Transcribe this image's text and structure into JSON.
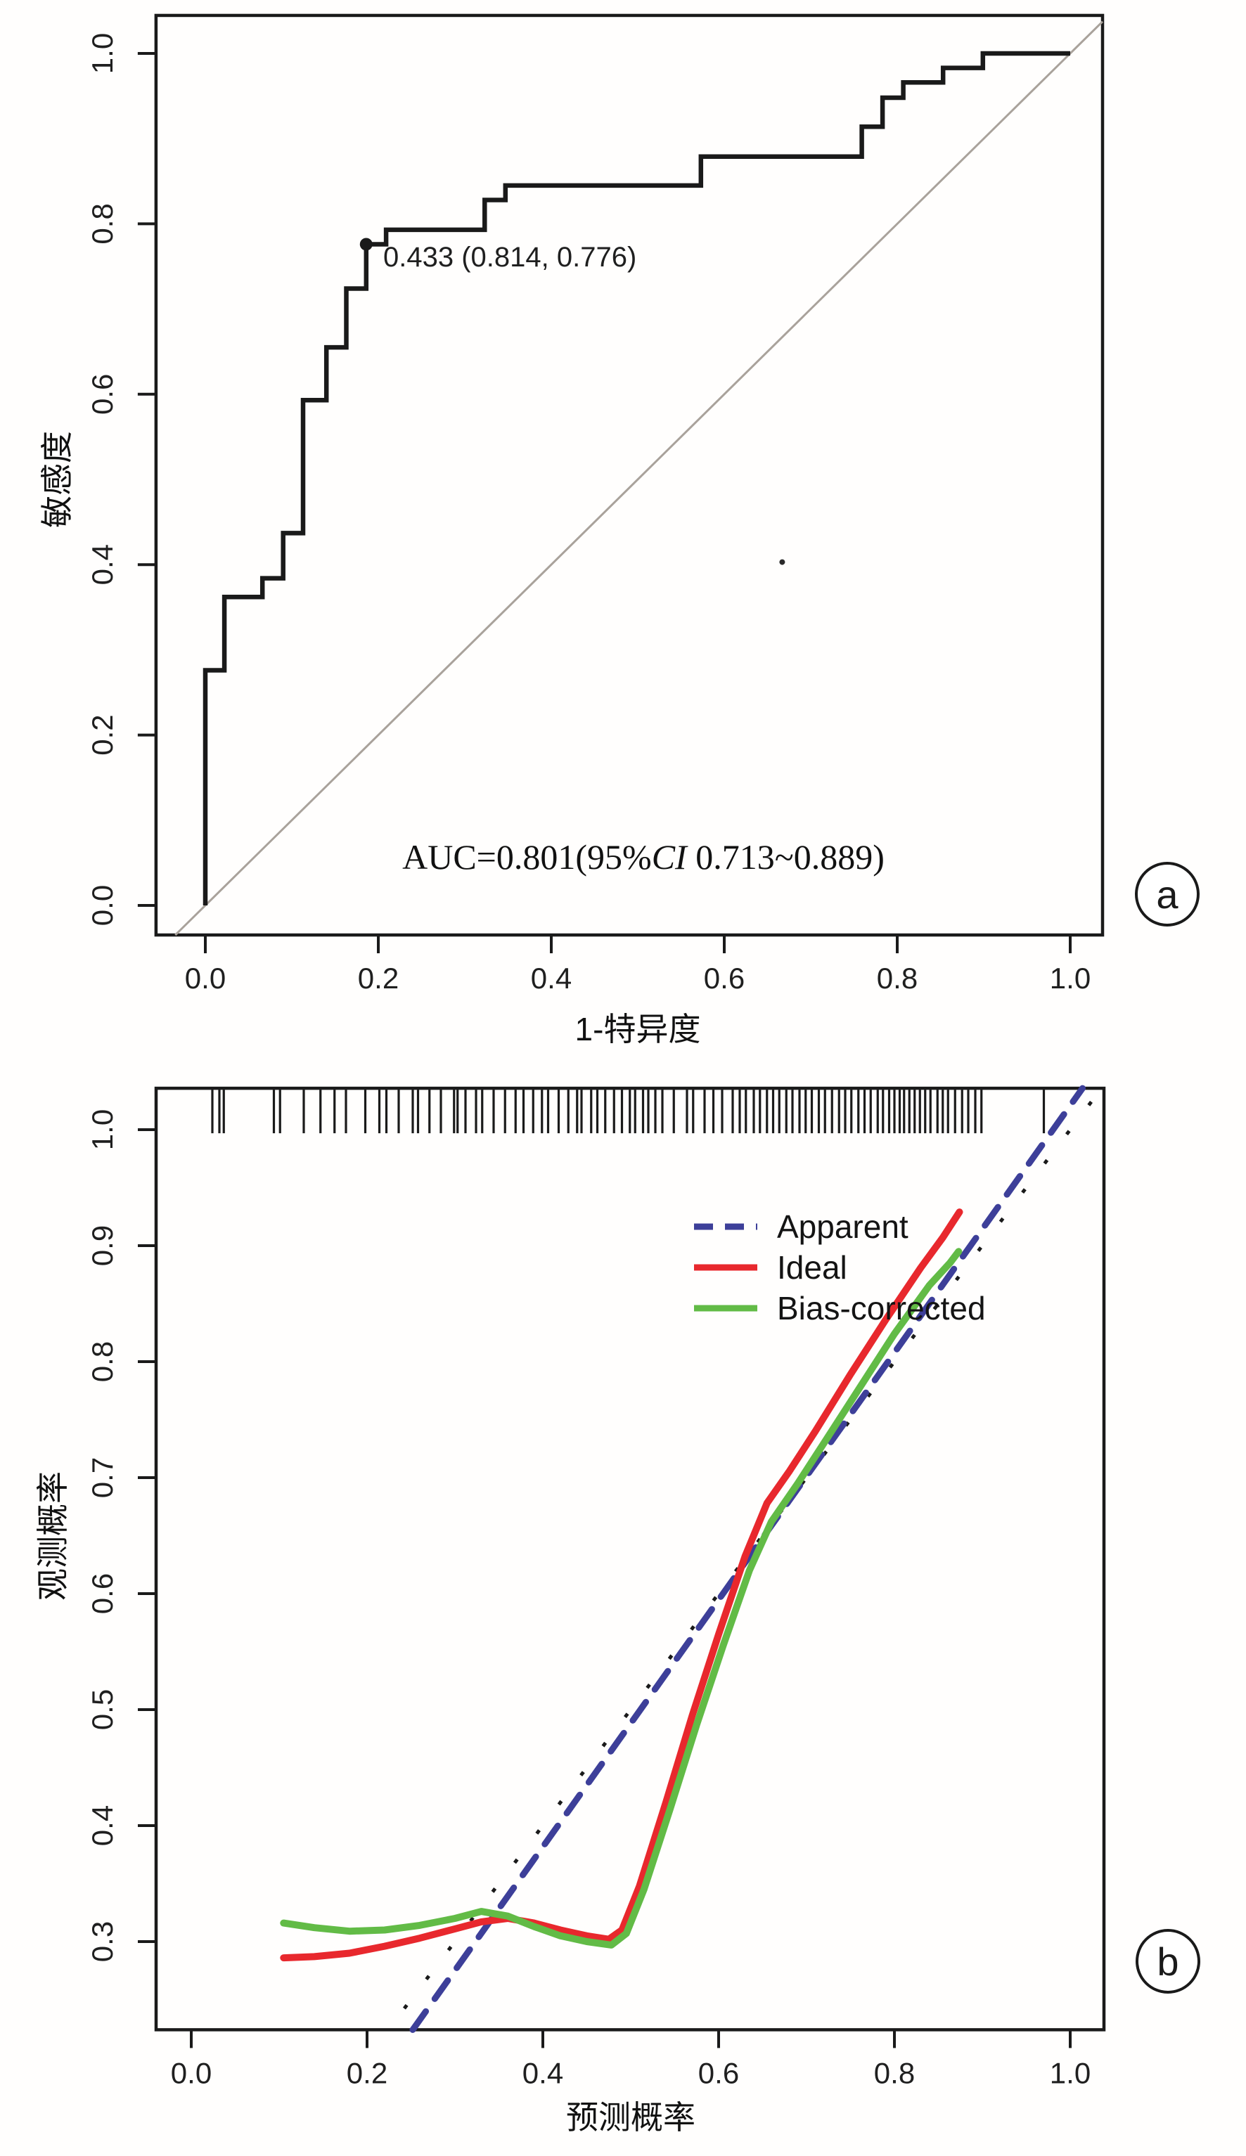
{
  "chart_data": [
    {
      "type": "line",
      "panel_label": "a",
      "description": "ROC curve",
      "xlabel": "1-特异度",
      "ylabel": "敏感度",
      "xlim": [
        -0.057,
        1.0374
      ],
      "ylim": [
        -0.0347,
        1.0446
      ],
      "grid": false,
      "x_ticks": {
        "values": [
          0,
          0.2,
          0.4,
          0.6,
          0.8,
          1.0
        ],
        "labels": [
          "0.0",
          "0.2",
          "0.4",
          "0.6",
          "0.8",
          "1.0"
        ]
      },
      "y_ticks": {
        "values": [
          0,
          0.2,
          0.4,
          0.6,
          0.8,
          1.0
        ],
        "labels": [
          "0.0",
          "0.2",
          "0.4",
          "0.6",
          "0.8",
          "1.0"
        ]
      },
      "reference_line": {
        "type": "y=x",
        "color": "#a9a29b"
      },
      "roc_curve": {
        "color": "#1a1a1a",
        "points": [
          [
            0,
            0
          ],
          [
            0,
            0.276
          ],
          [
            0.022,
            0.276
          ],
          [
            0.022,
            0.362
          ],
          [
            0.066,
            0.362
          ],
          [
            0.066,
            0.384
          ],
          [
            0.09,
            0.384
          ],
          [
            0.09,
            0.437
          ],
          [
            0.113,
            0.437
          ],
          [
            0.113,
            0.593
          ],
          [
            0.14,
            0.593
          ],
          [
            0.14,
            0.655
          ],
          [
            0.163,
            0.655
          ],
          [
            0.163,
            0.724
          ],
          [
            0.186,
            0.724
          ],
          [
            0.186,
            0.776
          ],
          [
            0.209,
            0.776
          ],
          [
            0.209,
            0.793
          ],
          [
            0.323,
            0.793
          ],
          [
            0.323,
            0.828
          ],
          [
            0.347,
            0.828
          ],
          [
            0.347,
            0.845
          ],
          [
            0.573,
            0.845
          ],
          [
            0.573,
            0.879
          ],
          [
            0.759,
            0.879
          ],
          [
            0.759,
            0.914
          ],
          [
            0.783,
            0.914
          ],
          [
            0.783,
            0.948
          ],
          [
            0.807,
            0.948
          ],
          [
            0.807,
            0.966
          ],
          [
            0.853,
            0.966
          ],
          [
            0.853,
            0.983
          ],
          [
            0.899,
            0.983
          ],
          [
            0.899,
            1.0
          ],
          [
            1.0,
            1.0
          ]
        ]
      },
      "marked_point": {
        "x": 0.186,
        "y": 0.776,
        "label": "0.433 (0.814, 0.776)"
      },
      "auc_annotation": {
        "prefix": "AUC=0.801(95%",
        "italic": "CI",
        "suffix": " 0.713~0.889)"
      },
      "stray_mark": {
        "x": 0.667,
        "y": 0.403
      }
    },
    {
      "type": "line",
      "panel_label": "b",
      "description": "Calibration curve",
      "xlabel": "预测概率",
      "ylabel": "观测概率",
      "xlim": [
        -0.04,
        1.0384
      ],
      "ylim": [
        0.224,
        1.0357
      ],
      "grid": false,
      "x_ticks": {
        "values": [
          0,
          0.2,
          0.4,
          0.6,
          0.8,
          1.0
        ],
        "labels": [
          "0.0",
          "0.2",
          "0.4",
          "0.6",
          "0.8",
          "1.0"
        ]
      },
      "y_ticks": {
        "values": [
          0.3,
          0.4,
          0.5,
          0.6,
          0.7,
          0.8,
          0.9,
          1.0
        ],
        "labels": [
          "0.3",
          "0.4",
          "0.5",
          "0.6",
          "0.7",
          "0.8",
          "0.9",
          "1.0"
        ]
      },
      "legend": {
        "position": "upper-middle-right",
        "entries": [
          {
            "label": "Apparent",
            "color": "#3d3f99",
            "style": "dashed"
          },
          {
            "label": "Ideal",
            "color": "#e8282d",
            "style": "solid"
          },
          {
            "label": "Bias-corrected",
            "color": "#62bb46",
            "style": "solid"
          }
        ]
      },
      "apparent_line": {
        "color": "#3d3f99",
        "style": "dashed",
        "from": [
          0.252,
          0.224
        ],
        "to": [
          1.014,
          1.0357
        ]
      },
      "ideal_dotted_line": {
        "color": "#1a1a1a",
        "style": "dotted",
        "from": [
          0.224,
          0.224
        ],
        "to": [
          1.0357,
          1.0357
        ]
      },
      "series": [
        {
          "name": "Ideal",
          "color": "#e8282d",
          "points": [
            [
              0.105,
              0.286
            ],
            [
              0.14,
              0.287
            ],
            [
              0.18,
              0.29
            ],
            [
              0.22,
              0.296
            ],
            [
              0.26,
              0.303
            ],
            [
              0.3,
              0.311
            ],
            [
              0.33,
              0.317
            ],
            [
              0.36,
              0.32
            ],
            [
              0.39,
              0.316
            ],
            [
              0.42,
              0.31
            ],
            [
              0.45,
              0.305
            ],
            [
              0.475,
              0.302
            ],
            [
              0.49,
              0.31
            ],
            [
              0.51,
              0.348
            ],
            [
              0.54,
              0.42
            ],
            [
              0.57,
              0.495
            ],
            [
              0.6,
              0.565
            ],
            [
              0.63,
              0.632
            ],
            [
              0.655,
              0.678
            ],
            [
              0.68,
              0.705
            ],
            [
              0.71,
              0.74
            ],
            [
              0.75,
              0.789
            ],
            [
              0.79,
              0.836
            ],
            [
              0.83,
              0.881
            ],
            [
              0.855,
              0.907
            ],
            [
              0.874,
              0.929
            ]
          ]
        },
        {
          "name": "Bias-corrected",
          "color": "#62bb46",
          "points": [
            [
              0.105,
              0.316
            ],
            [
              0.14,
              0.312
            ],
            [
              0.18,
              0.309
            ],
            [
              0.22,
              0.31
            ],
            [
              0.26,
              0.314
            ],
            [
              0.3,
              0.32
            ],
            [
              0.33,
              0.326
            ],
            [
              0.36,
              0.322
            ],
            [
              0.39,
              0.313
            ],
            [
              0.42,
              0.305
            ],
            [
              0.45,
              0.3
            ],
            [
              0.478,
              0.297
            ],
            [
              0.495,
              0.307
            ],
            [
              0.515,
              0.345
            ],
            [
              0.545,
              0.415
            ],
            [
              0.575,
              0.487
            ],
            [
              0.605,
              0.555
            ],
            [
              0.635,
              0.62
            ],
            [
              0.66,
              0.662
            ],
            [
              0.69,
              0.695
            ],
            [
              0.72,
              0.73
            ],
            [
              0.76,
              0.777
            ],
            [
              0.8,
              0.824
            ],
            [
              0.84,
              0.866
            ],
            [
              0.863,
              0.885
            ],
            [
              0.873,
              0.895
            ]
          ]
        }
      ],
      "rug_x": [
        0.024,
        0.032,
        0.037,
        0.094,
        0.101,
        0.128,
        0.147,
        0.163,
        0.176,
        0.198,
        0.214,
        0.222,
        0.236,
        0.252,
        0.258,
        0.271,
        0.284,
        0.299,
        0.303,
        0.312,
        0.324,
        0.331,
        0.344,
        0.357,
        0.369,
        0.378,
        0.389,
        0.399,
        0.406,
        0.418,
        0.429,
        0.439,
        0.444,
        0.455,
        0.462,
        0.471,
        0.481,
        0.49,
        0.499,
        0.505,
        0.514,
        0.52,
        0.528,
        0.536,
        0.549,
        0.564,
        0.571,
        0.584,
        0.594,
        0.604,
        0.616,
        0.624,
        0.631,
        0.64,
        0.647,
        0.655,
        0.662,
        0.669,
        0.677,
        0.684,
        0.692,
        0.699,
        0.706,
        0.714,
        0.721,
        0.729,
        0.737,
        0.744,
        0.751,
        0.759,
        0.766,
        0.773,
        0.781,
        0.787,
        0.794,
        0.8,
        0.806,
        0.811,
        0.817,
        0.823,
        0.829,
        0.835,
        0.841,
        0.849,
        0.855,
        0.861,
        0.869,
        0.877,
        0.884,
        0.892,
        0.899,
        0.97
      ]
    }
  ]
}
